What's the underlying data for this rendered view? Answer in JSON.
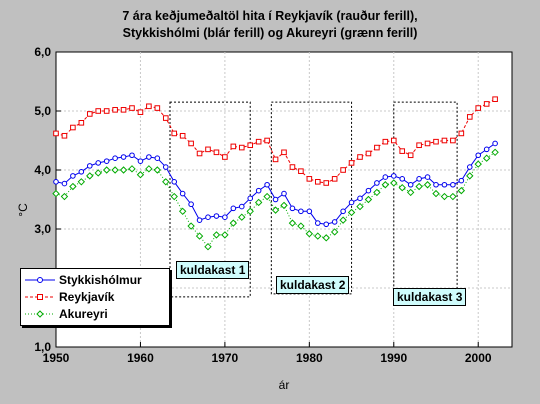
{
  "chart_data": {
    "type": "line",
    "title": [
      "7 ára keðjumeðaltöl hita í Reykjavík (rauður ferill),",
      "Stykkishólmi (blár ferill) og Akureyri (grænn ferill)"
    ],
    "xlabel": "ár",
    "ylabel": "°C",
    "xlim": [
      1950,
      2004
    ],
    "ylim": [
      1.0,
      6.0
    ],
    "xticks": [
      "1950",
      "1960",
      "1970",
      "1980",
      "1990",
      "2000"
    ],
    "yticks": [
      "1,0",
      "2,0",
      "3,0",
      "4,0",
      "5,0",
      "6,0"
    ],
    "legend_position": "lower-left",
    "series": [
      {
        "name": "Stykkishólmur",
        "color": "#0000ee",
        "marker": "circle",
        "x": [
          1950,
          1951,
          1952,
          1953,
          1954,
          1955,
          1956,
          1957,
          1958,
          1959,
          1960,
          1961,
          1962,
          1963,
          1964,
          1965,
          1966,
          1967,
          1968,
          1969,
          1970,
          1971,
          1972,
          1973,
          1974,
          1975,
          1976,
          1977,
          1978,
          1979,
          1980,
          1981,
          1982,
          1983,
          1984,
          1985,
          1986,
          1987,
          1988,
          1989,
          1990,
          1991,
          1992,
          1993,
          1994,
          1995,
          1996,
          1997,
          1998,
          1999,
          2000,
          2001,
          2002
        ],
        "y": [
          3.8,
          3.77,
          3.9,
          3.97,
          4.07,
          4.12,
          4.15,
          4.2,
          4.22,
          4.25,
          4.15,
          4.22,
          4.2,
          4.05,
          3.8,
          3.6,
          3.42,
          3.15,
          3.2,
          3.22,
          3.2,
          3.35,
          3.38,
          3.52,
          3.65,
          3.75,
          3.5,
          3.6,
          3.35,
          3.3,
          3.3,
          3.1,
          3.08,
          3.12,
          3.3,
          3.45,
          3.52,
          3.65,
          3.78,
          3.88,
          3.9,
          3.85,
          3.75,
          3.85,
          3.88,
          3.75,
          3.75,
          3.75,
          3.82,
          4.05,
          4.25,
          4.35,
          4.45
        ]
      },
      {
        "name": "Reykjavík",
        "color": "#ee0000",
        "marker": "square",
        "x": [
          1950,
          1951,
          1952,
          1953,
          1954,
          1955,
          1956,
          1957,
          1958,
          1959,
          1960,
          1961,
          1962,
          1963,
          1964,
          1965,
          1966,
          1967,
          1968,
          1969,
          1970,
          1971,
          1972,
          1973,
          1974,
          1975,
          1976,
          1977,
          1978,
          1979,
          1980,
          1981,
          1982,
          1983,
          1984,
          1985,
          1986,
          1987,
          1988,
          1989,
          1990,
          1991,
          1992,
          1993,
          1994,
          1995,
          1996,
          1997,
          1998,
          1999,
          2000,
          2001,
          2002
        ],
        "y": [
          4.62,
          4.58,
          4.72,
          4.8,
          4.95,
          5.0,
          5.0,
          5.02,
          5.02,
          5.05,
          4.98,
          5.08,
          5.05,
          4.88,
          4.62,
          4.58,
          4.45,
          4.28,
          4.35,
          4.3,
          4.22,
          4.4,
          4.38,
          4.42,
          4.48,
          4.5,
          4.18,
          4.3,
          4.05,
          3.98,
          3.85,
          3.8,
          3.78,
          3.85,
          4.0,
          4.12,
          4.22,
          4.28,
          4.38,
          4.48,
          4.5,
          4.32,
          4.25,
          4.42,
          4.45,
          4.48,
          4.5,
          4.5,
          4.62,
          4.9,
          5.05,
          5.12,
          5.2
        ]
      },
      {
        "name": "Akureyri",
        "color": "#00aa00",
        "marker": "diamond",
        "x": [
          1950,
          1951,
          1952,
          1953,
          1954,
          1955,
          1956,
          1957,
          1958,
          1959,
          1960,
          1961,
          1962,
          1963,
          1964,
          1965,
          1966,
          1967,
          1968,
          1969,
          1970,
          1971,
          1972,
          1973,
          1974,
          1975,
          1976,
          1977,
          1978,
          1979,
          1980,
          1981,
          1982,
          1983,
          1984,
          1985,
          1986,
          1987,
          1988,
          1989,
          1990,
          1991,
          1992,
          1993,
          1994,
          1995,
          1996,
          1997,
          1998,
          1999,
          2000,
          2001,
          2002
        ],
        "y": [
          3.6,
          3.55,
          3.72,
          3.8,
          3.9,
          3.95,
          4.0,
          4.0,
          4.0,
          4.02,
          3.92,
          4.02,
          4.0,
          3.8,
          3.55,
          3.3,
          3.05,
          2.88,
          2.7,
          2.9,
          2.9,
          3.1,
          3.2,
          3.3,
          3.45,
          3.55,
          3.32,
          3.4,
          3.1,
          3.05,
          2.92,
          2.88,
          2.85,
          2.95,
          3.15,
          3.28,
          3.38,
          3.5,
          3.62,
          3.75,
          3.78,
          3.7,
          3.62,
          3.72,
          3.75,
          3.6,
          3.55,
          3.55,
          3.65,
          3.9,
          4.1,
          4.2,
          4.3
        ]
      }
    ],
    "annotations": [
      {
        "label": "kuldakast 1",
        "x_range": [
          1963.5,
          1973
        ],
        "y_range": [
          1.85,
          5.15
        ]
      },
      {
        "label": "kuldakast 2",
        "x_range": [
          1975.5,
          1985
        ],
        "y_range": [
          1.9,
          5.15
        ]
      },
      {
        "label": "kuldakast 3",
        "x_range": [
          1990,
          1997.5
        ],
        "y_range": [
          1.95,
          5.15
        ]
      }
    ]
  }
}
